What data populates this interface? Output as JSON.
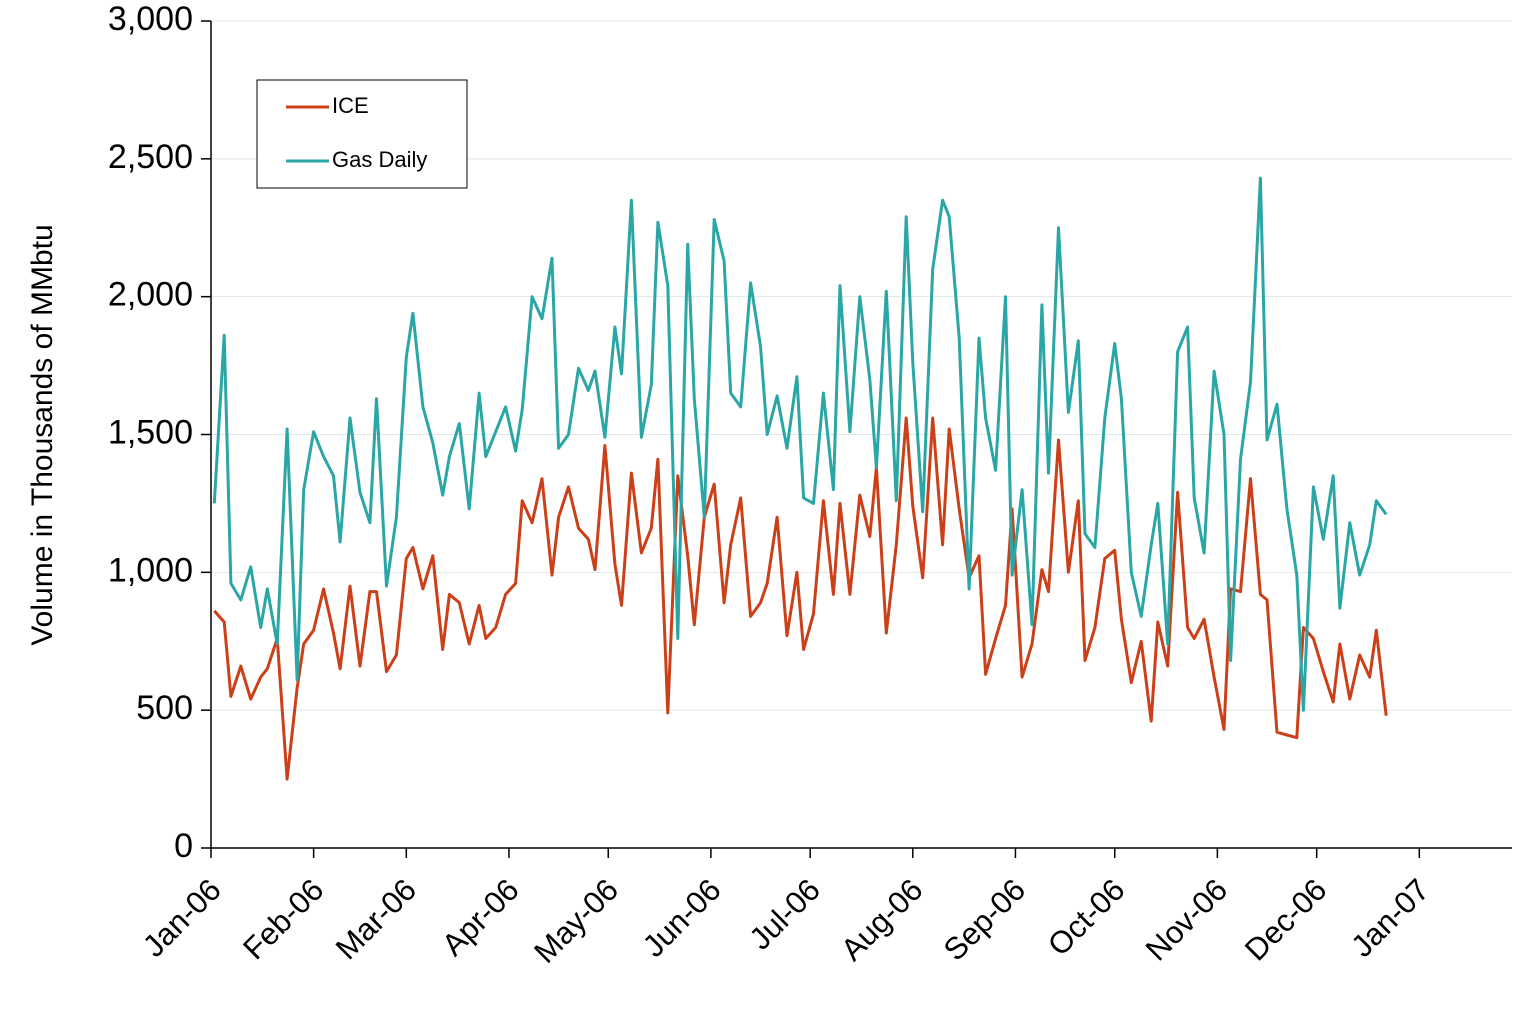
{
  "chart_data": {
    "type": "line",
    "ylabel": "Volume in Thousands of MMbtu",
    "xlim": [
      0,
      393
    ],
    "ylim": [
      0,
      3000
    ],
    "xticks": [
      {
        "value": 0,
        "label": "Jan-06"
      },
      {
        "value": 31,
        "label": "Feb-06"
      },
      {
        "value": 59,
        "label": "Mar-06"
      },
      {
        "value": 90,
        "label": "Apr-06"
      },
      {
        "value": 120,
        "label": "May-06"
      },
      {
        "value": 151,
        "label": "Jun-06"
      },
      {
        "value": 181,
        "label": "Jul-06"
      },
      {
        "value": 212,
        "label": "Aug-06"
      },
      {
        "value": 243,
        "label": "Sep-06"
      },
      {
        "value": 273,
        "label": "Oct-06"
      },
      {
        "value": 304,
        "label": "Nov-06"
      },
      {
        "value": 334,
        "label": "Dec-06"
      },
      {
        "value": 365,
        "label": "Jan-07"
      }
    ],
    "yticks": [
      0,
      500,
      {
        "value": 1000,
        "label": "1,000"
      },
      {
        "value": 1500,
        "label": "1,500"
      },
      {
        "value": 2000,
        "label": "2,000"
      },
      {
        "value": 2500,
        "label": "2,500"
      },
      {
        "value": 3000,
        "label": "3,000"
      }
    ],
    "grid": true,
    "legend": "upper left",
    "x": [
      1,
      4,
      6,
      9,
      12,
      15,
      17,
      20,
      23,
      26,
      28,
      31,
      34,
      37,
      39,
      42,
      45,
      48,
      50,
      53,
      56,
      59,
      61,
      64,
      67,
      70,
      72,
      75,
      78,
      81,
      83,
      86,
      89,
      92,
      94,
      97,
      100,
      103,
      105,
      108,
      111,
      114,
      116,
      119,
      122,
      124,
      127,
      130,
      133,
      135,
      138,
      141,
      144,
      146,
      149,
      152,
      155,
      157,
      160,
      163,
      166,
      168,
      171,
      174,
      177,
      179,
      182,
      185,
      188,
      190,
      193,
      196,
      199,
      201,
      204,
      207,
      210,
      212,
      215,
      218,
      221,
      223,
      226,
      229,
      232,
      234,
      237,
      240,
      242,
      245,
      248,
      251,
      253,
      256,
      259,
      262,
      264,
      267,
      270,
      273,
      275,
      278,
      281,
      284,
      286,
      289,
      292,
      295,
      297,
      300,
      303,
      306,
      308,
      311,
      314,
      317,
      319,
      322,
      325,
      328,
      330,
      333,
      336,
      339,
      341,
      344,
      347,
      350,
      352,
      355
    ],
    "series": [
      {
        "name": "ICE",
        "color": "#cc4019",
        "values": [
          860,
          820,
          550,
          660,
          540,
          620,
          650,
          760,
          250,
          580,
          740,
          790,
          940,
          780,
          650,
          950,
          660,
          930,
          930,
          640,
          700,
          1050,
          1090,
          940,
          1060,
          720,
          920,
          890,
          740,
          880,
          760,
          800,
          920,
          960,
          1260,
          1180,
          1340,
          990,
          1200,
          1310,
          1160,
          1120,
          1010,
          1460,
          1030,
          880,
          1360,
          1070,
          1160,
          1410,
          490,
          1350,
          1060,
          810,
          1200,
          1320,
          890,
          1100,
          1270,
          840,
          890,
          960,
          1200,
          770,
          1000,
          720,
          850,
          1260,
          920,
          1250,
          920,
          1280,
          1130,
          1380,
          780,
          1100,
          1560,
          1240,
          980,
          1560,
          1100,
          1520,
          1230,
          980,
          1060,
          630,
          760,
          880,
          1230,
          620,
          740,
          1010,
          930,
          1480,
          1000,
          1260,
          680,
          800,
          1050,
          1080,
          830,
          600,
          750,
          460,
          820,
          660,
          1290,
          800,
          760,
          830,
          620,
          430,
          940,
          930,
          1340,
          920,
          900,
          420,
          410,
          400,
          800,
          760,
          640,
          530,
          740,
          540,
          700,
          620,
          790,
          480
        ]
      },
      {
        "name": "Gas Daily",
        "color": "#2ba6a6",
        "values": [
          1250,
          1860,
          960,
          900,
          1020,
          800,
          940,
          740,
          1520,
          610,
          1300,
          1510,
          1420,
          1350,
          1110,
          1560,
          1290,
          1180,
          1630,
          950,
          1200,
          1780,
          1940,
          1600,
          1470,
          1280,
          1420,
          1540,
          1230,
          1650,
          1420,
          1510,
          1600,
          1440,
          1590,
          2000,
          1920,
          2140,
          1450,
          1500,
          1740,
          1660,
          1730,
          1490,
          1890,
          1720,
          2350,
          1490,
          1680,
          2270,
          2040,
          760,
          2190,
          1630,
          1200,
          2280,
          2130,
          1650,
          1600,
          2050,
          1820,
          1500,
          1640,
          1450,
          1710,
          1270,
          1250,
          1650,
          1300,
          2040,
          1510,
          2000,
          1700,
          1380,
          2020,
          1260,
          2290,
          1760,
          1220,
          2100,
          2350,
          2290,
          1850,
          940,
          1850,
          1560,
          1370,
          2000,
          990,
          1300,
          810,
          1970,
          1360,
          2250,
          1580,
          1840,
          1140,
          1090,
          1560,
          1830,
          1630,
          1000,
          840,
          1100,
          1250,
          740,
          1800,
          1890,
          1270,
          1070,
          1730,
          1500,
          680,
          1410,
          1690,
          2430,
          1480,
          1610,
          1230,
          990,
          500,
          1310,
          1120,
          1350,
          870,
          1180,
          990,
          1100,
          1260,
          1210
        ]
      }
    ]
  }
}
